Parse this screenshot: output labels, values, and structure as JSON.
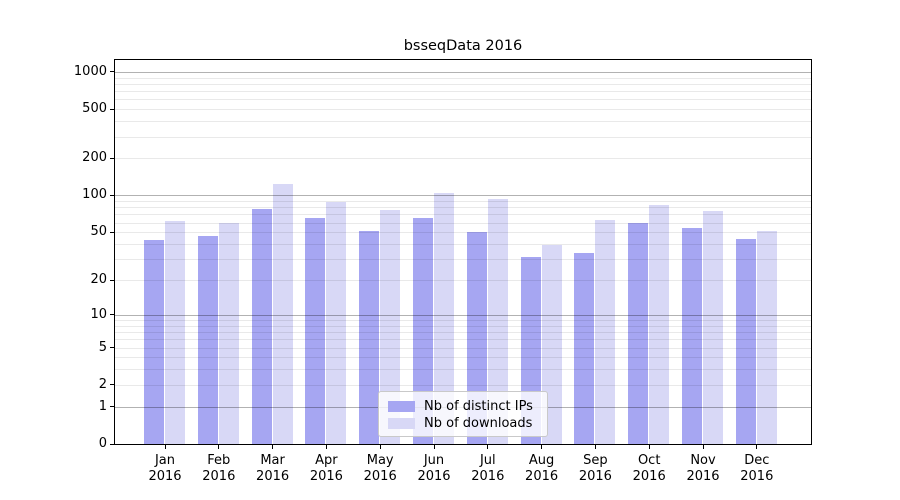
{
  "chart_data": {
    "type": "bar",
    "title": "bsseqData 2016",
    "categories": [
      "Jan",
      "Feb",
      "Mar",
      "Apr",
      "May",
      "Jun",
      "Jul",
      "Aug",
      "Sep",
      "Oct",
      "Nov",
      "Dec"
    ],
    "year_label": "2016",
    "series": [
      {
        "name": "Nb of distinct IPs",
        "color": "#a6a6f2",
        "values": [
          43,
          47,
          77,
          66,
          51,
          65,
          50,
          31,
          34,
          60,
          54,
          44
        ]
      },
      {
        "name": "Nb of downloads",
        "color": "#d8d8f6",
        "values": [
          62,
          60,
          125,
          89,
          76,
          104,
          94,
          39,
          63,
          83,
          74,
          51
        ]
      }
    ],
    "xlabel": "",
    "ylabel": "",
    "yscale": "log1p",
    "yticks": [
      0,
      1,
      2,
      5,
      10,
      20,
      50,
      100,
      200,
      500,
      1000
    ],
    "ylim": [
      0,
      1250
    ],
    "grid": true,
    "legend_position": "lower center inside"
  }
}
